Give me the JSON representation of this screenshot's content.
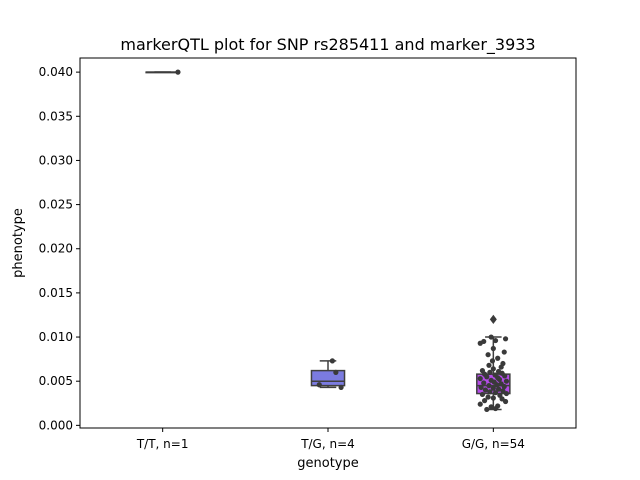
{
  "chart_data": {
    "type": "box",
    "title": "markerQTL plot for SNP rs285411 and marker_3933",
    "xlabel": "genotype",
    "ylabel": "phenotype",
    "ylim": [
      -0.0003,
      0.0416
    ],
    "yticks": [
      0.0,
      0.005,
      0.01,
      0.015,
      0.02,
      0.025,
      0.03,
      0.035,
      0.04
    ],
    "ytick_labels": [
      "0.000",
      "0.005",
      "0.010",
      "0.015",
      "0.020",
      "0.025",
      "0.030",
      "0.035",
      "0.040"
    ],
    "categories": [
      "T/T, n=1",
      "T/G, n=4",
      "G/G, n=54"
    ],
    "boxes": [
      {
        "category": "T/T, n=1",
        "color": "#6a6ad6",
        "q1": 0.04,
        "median": 0.04,
        "q3": 0.04,
        "whisker_low": 0.04,
        "whisker_high": 0.04,
        "outliers": [],
        "points": [
          [
            0.35,
            0.04
          ]
        ]
      },
      {
        "category": "T/G, n=4",
        "color": "#7b7be0",
        "q1": 0.0045,
        "median": 0.005,
        "q3": 0.0062,
        "whisker_low": 0.0043,
        "whisker_high": 0.0073,
        "outliers": [],
        "points": [
          [
            -0.2,
            0.0046
          ],
          [
            0.3,
            0.0043
          ],
          [
            0.1,
            0.0073
          ],
          [
            0.18,
            0.006
          ]
        ]
      },
      {
        "category": "G/G, n=54",
        "color": "#b44ce8",
        "q1": 0.0036,
        "median": 0.0045,
        "q3": 0.0058,
        "whisker_low": 0.0018,
        "whisker_high": 0.01,
        "outliers": [
          0.012
        ],
        "points": [
          [
            -0.15,
            0.0018
          ],
          [
            0.05,
            0.0019
          ],
          [
            -0.05,
            0.0021
          ],
          [
            0.1,
            0.0022
          ],
          [
            -0.3,
            0.0024
          ],
          [
            0.28,
            0.0027
          ],
          [
            -0.2,
            0.0028
          ],
          [
            0.2,
            0.003
          ],
          [
            0.0,
            0.0031
          ],
          [
            -0.12,
            0.0032
          ],
          [
            0.15,
            0.0034
          ],
          [
            -0.25,
            0.0035
          ],
          [
            0.3,
            0.0036
          ],
          [
            0.05,
            0.0037
          ],
          [
            -0.08,
            0.0038
          ],
          [
            0.22,
            0.0039
          ],
          [
            -0.18,
            0.004
          ],
          [
            0.12,
            0.0041
          ],
          [
            0.0,
            0.0042
          ],
          [
            -0.28,
            0.0043
          ],
          [
            0.25,
            0.0044
          ],
          [
            -0.1,
            0.0045
          ],
          [
            0.08,
            0.0046
          ],
          [
            0.18,
            0.0047
          ],
          [
            -0.22,
            0.0048
          ],
          [
            0.02,
            0.0049
          ],
          [
            0.3,
            0.005
          ],
          [
            -0.05,
            0.0051
          ],
          [
            0.14,
            0.0052
          ],
          [
            -0.3,
            0.0053
          ],
          [
            0.1,
            0.0054
          ],
          [
            -0.15,
            0.0055
          ],
          [
            0.26,
            0.0056
          ],
          [
            0.04,
            0.0057
          ],
          [
            -0.2,
            0.0058
          ],
          [
            0.2,
            0.0059
          ],
          [
            -0.08,
            0.006
          ],
          [
            0.12,
            0.0061
          ],
          [
            -0.25,
            0.0062
          ],
          [
            0.0,
            0.0064
          ],
          [
            0.18,
            0.0066
          ],
          [
            -0.1,
            0.0068
          ],
          [
            0.22,
            0.007
          ],
          [
            -0.02,
            0.0073
          ],
          [
            0.1,
            0.0076
          ],
          [
            -0.12,
            0.008
          ],
          [
            0.25,
            0.0083
          ],
          [
            0.0,
            0.0087
          ],
          [
            -0.3,
            0.0093
          ],
          [
            -0.22,
            0.0095
          ],
          [
            0.05,
            0.0096
          ],
          [
            0.28,
            0.0098
          ],
          [
            -0.05,
            0.01
          ],
          [
            0.0,
            0.012
          ]
        ]
      }
    ],
    "grid": false,
    "legend": "none"
  }
}
